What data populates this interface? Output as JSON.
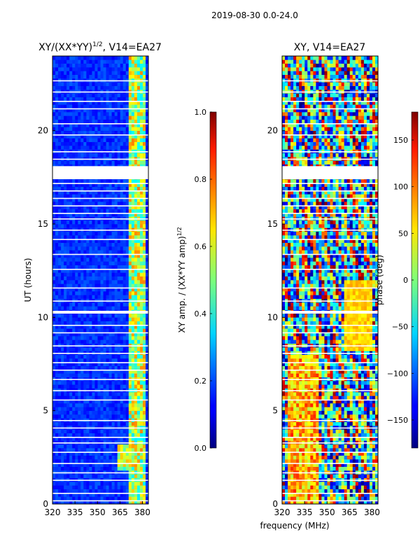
{
  "figure_title": "2019-08-30 0.0-24.0",
  "chart_data": [
    {
      "type": "heatmap",
      "title": "XY/(XX*YY)^(1/2), V14=EA27",
      "title_parts": {
        "main": "XY/(XX*YY)",
        "sup": "1/2",
        "tail": ", V14=EA27"
      },
      "xlabel": "",
      "ylabel": "UT (hours)",
      "xlim": [
        320,
        384
      ],
      "ylim": [
        0,
        24
      ],
      "x_ticks": [
        320,
        335,
        350,
        365,
        380
      ],
      "y_ticks": [
        0,
        5,
        10,
        15,
        20
      ],
      "colorbar": {
        "label": "XY amp. / (XX*YY amp)",
        "label_sup": "1/2",
        "range": [
          0.0,
          1.0
        ],
        "ticks": [
          "0.0",
          "0.2",
          "0.4",
          "0.6",
          "0.8",
          "1.0"
        ],
        "tick_values": [
          0.0,
          0.2,
          0.4,
          0.6,
          0.8,
          1.0
        ]
      },
      "blank_rows_hours": [
        [
          17.4,
          18.1
        ],
        [
          10.2,
          10.35
        ]
      ]
    },
    {
      "type": "heatmap",
      "title": "XY, V14=EA27",
      "xlabel": "frequency (MHz)",
      "ylabel": "",
      "xlim": [
        320,
        384
      ],
      "ylim": [
        0,
        24
      ],
      "x_ticks": [
        320,
        335,
        350,
        365,
        380
      ],
      "y_ticks": [
        0,
        5,
        10,
        15,
        20
      ],
      "colorbar": {
        "label": "phase (deg)",
        "range": [
          -180,
          180
        ],
        "ticks": [
          "150",
          "100",
          "50",
          "0",
          "−50",
          "−100",
          "−150"
        ],
        "tick_values": [
          150,
          100,
          50,
          0,
          -50,
          -100,
          -150
        ]
      },
      "blank_rows_hours": [
        [
          17.4,
          18.1
        ],
        [
          10.2,
          10.35
        ]
      ]
    }
  ]
}
